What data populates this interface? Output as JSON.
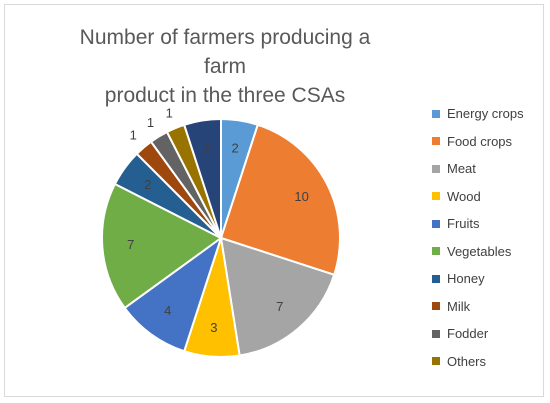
{
  "chart_data": {
    "type": "pie",
    "title": "Number of farmers producing a farm product in the three CSAs",
    "title_lines": [
      "Number of farmers producing a farm",
      "product in the three CSAs"
    ],
    "legend_position": "right",
    "slices": [
      {
        "label": "Energy crops",
        "value": 2,
        "color": "#5B9BD5"
      },
      {
        "label": "Food crops",
        "value": 10,
        "color": "#ED7D31"
      },
      {
        "label": "Meat",
        "value": 7,
        "color": "#A5A5A5"
      },
      {
        "label": "Wood",
        "value": 3,
        "color": "#FFC000"
      },
      {
        "label": "Fruits",
        "value": 4,
        "color": "#4472C4"
      },
      {
        "label": "Vegetables",
        "value": 7,
        "color": "#70AD47"
      },
      {
        "label": "Honey",
        "value": 2,
        "color": "#255E91"
      },
      {
        "label": "Milk",
        "value": 1,
        "color": "#9E480E"
      },
      {
        "label": "Fodder",
        "value": 1,
        "color": "#636363"
      },
      {
        "label": "Others",
        "value": 1,
        "color": "#997300"
      },
      {
        "label": "",
        "value": 2,
        "color": "#264478"
      }
    ]
  }
}
